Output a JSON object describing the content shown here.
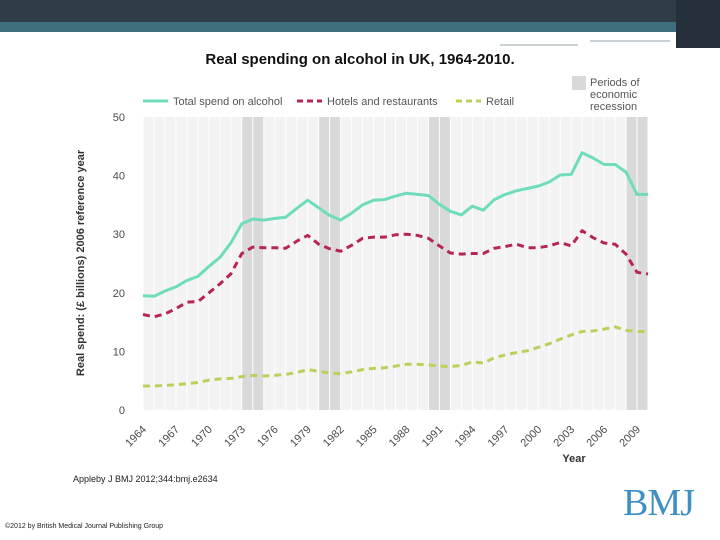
{
  "slide": {
    "title": "Real spending on alcohol in UK, 1964-2010.",
    "citation": "Appleby J BMJ 2012;344:bmj.e2634",
    "copyright": "©2012 by British Medical Journal Publishing Group",
    "logo_text": "BMJ",
    "colors": {
      "header_dark": "#2f3d47",
      "header_accent": "#3f6f7c",
      "logo": "#3f8fc3"
    }
  },
  "chart_data": {
    "type": "line",
    "title": "",
    "xlabel": "Year",
    "ylabel": "Real spend: (£ billions) 2006 reference year",
    "xlim": [
      1964,
      2010
    ],
    "ylim": [
      0,
      50
    ],
    "yticks": [
      0,
      10,
      20,
      30,
      40,
      50
    ],
    "xticks": [
      1964,
      1967,
      1970,
      1973,
      1976,
      1979,
      1982,
      1985,
      1988,
      1991,
      1994,
      1997,
      2000,
      2003,
      2006,
      2009
    ],
    "grid": true,
    "legend_position": "top",
    "recession_periods": [
      [
        1973,
        1975
      ],
      [
        1980,
        1982
      ],
      [
        1990,
        1992
      ],
      [
        2008,
        2010
      ]
    ],
    "recession_label": "Periods of economic recession",
    "recession_color": "#d9d9d9",
    "x": [
      1964,
      1965,
      1966,
      1967,
      1968,
      1969,
      1970,
      1971,
      1972,
      1973,
      1974,
      1975,
      1976,
      1977,
      1978,
      1979,
      1980,
      1981,
      1982,
      1983,
      1984,
      1985,
      1986,
      1987,
      1988,
      1989,
      1990,
      1991,
      1992,
      1993,
      1994,
      1995,
      1996,
      1997,
      1998,
      1999,
      2000,
      2001,
      2002,
      2003,
      2004,
      2005,
      2006,
      2007,
      2008,
      2009,
      2010
    ],
    "series": [
      {
        "name": "Total spend on alcohol",
        "color": "#6fdcbc",
        "style": "solid",
        "values": [
          19.5,
          19.4,
          20.3,
          21.0,
          22.1,
          22.8,
          24.5,
          26.0,
          28.5,
          31.8,
          32.6,
          32.4,
          32.7,
          32.9,
          34.4,
          35.8,
          34.5,
          33.2,
          32.4,
          33.6,
          35.0,
          35.8,
          35.9,
          36.5,
          37.0,
          36.8,
          36.6,
          35.1,
          33.9,
          33.3,
          34.8,
          34.1,
          35.9,
          36.8,
          37.4,
          37.8,
          38.2,
          38.9,
          40.1,
          40.2,
          43.9,
          43.0,
          41.9,
          41.9,
          40.6,
          36.8,
          36.8
        ]
      },
      {
        "name": "Hotels and restaurants",
        "color": "#b62459",
        "style": "dashed",
        "values": [
          16.3,
          15.9,
          16.4,
          17.3,
          18.4,
          18.5,
          20.0,
          21.5,
          23.2,
          26.7,
          27.8,
          27.7,
          27.7,
          27.6,
          28.8,
          29.8,
          28.3,
          27.5,
          27.1,
          28.1,
          29.3,
          29.5,
          29.5,
          29.9,
          30.0,
          29.8,
          29.3,
          28.0,
          26.8,
          26.6,
          26.7,
          26.7,
          27.6,
          27.9,
          28.3,
          27.7,
          27.7,
          28.0,
          28.6,
          28.0,
          30.6,
          29.4,
          28.5,
          28.3,
          26.6,
          23.5,
          23.2
        ]
      },
      {
        "name": "Retail",
        "color": "#b9d15a",
        "style": "dashed",
        "values": [
          4.1,
          4.1,
          4.2,
          4.3,
          4.5,
          4.7,
          5.1,
          5.3,
          5.4,
          5.7,
          5.9,
          5.8,
          5.9,
          6.1,
          6.4,
          6.9,
          6.6,
          6.3,
          6.2,
          6.5,
          6.9,
          7.1,
          7.2,
          7.5,
          7.8,
          7.8,
          7.7,
          7.5,
          7.4,
          7.6,
          8.2,
          8.0,
          8.9,
          9.4,
          9.8,
          10.1,
          10.7,
          11.3,
          12.1,
          12.8,
          13.4,
          13.5,
          13.8,
          14.2,
          13.6,
          13.4,
          13.4
        ]
      }
    ]
  }
}
